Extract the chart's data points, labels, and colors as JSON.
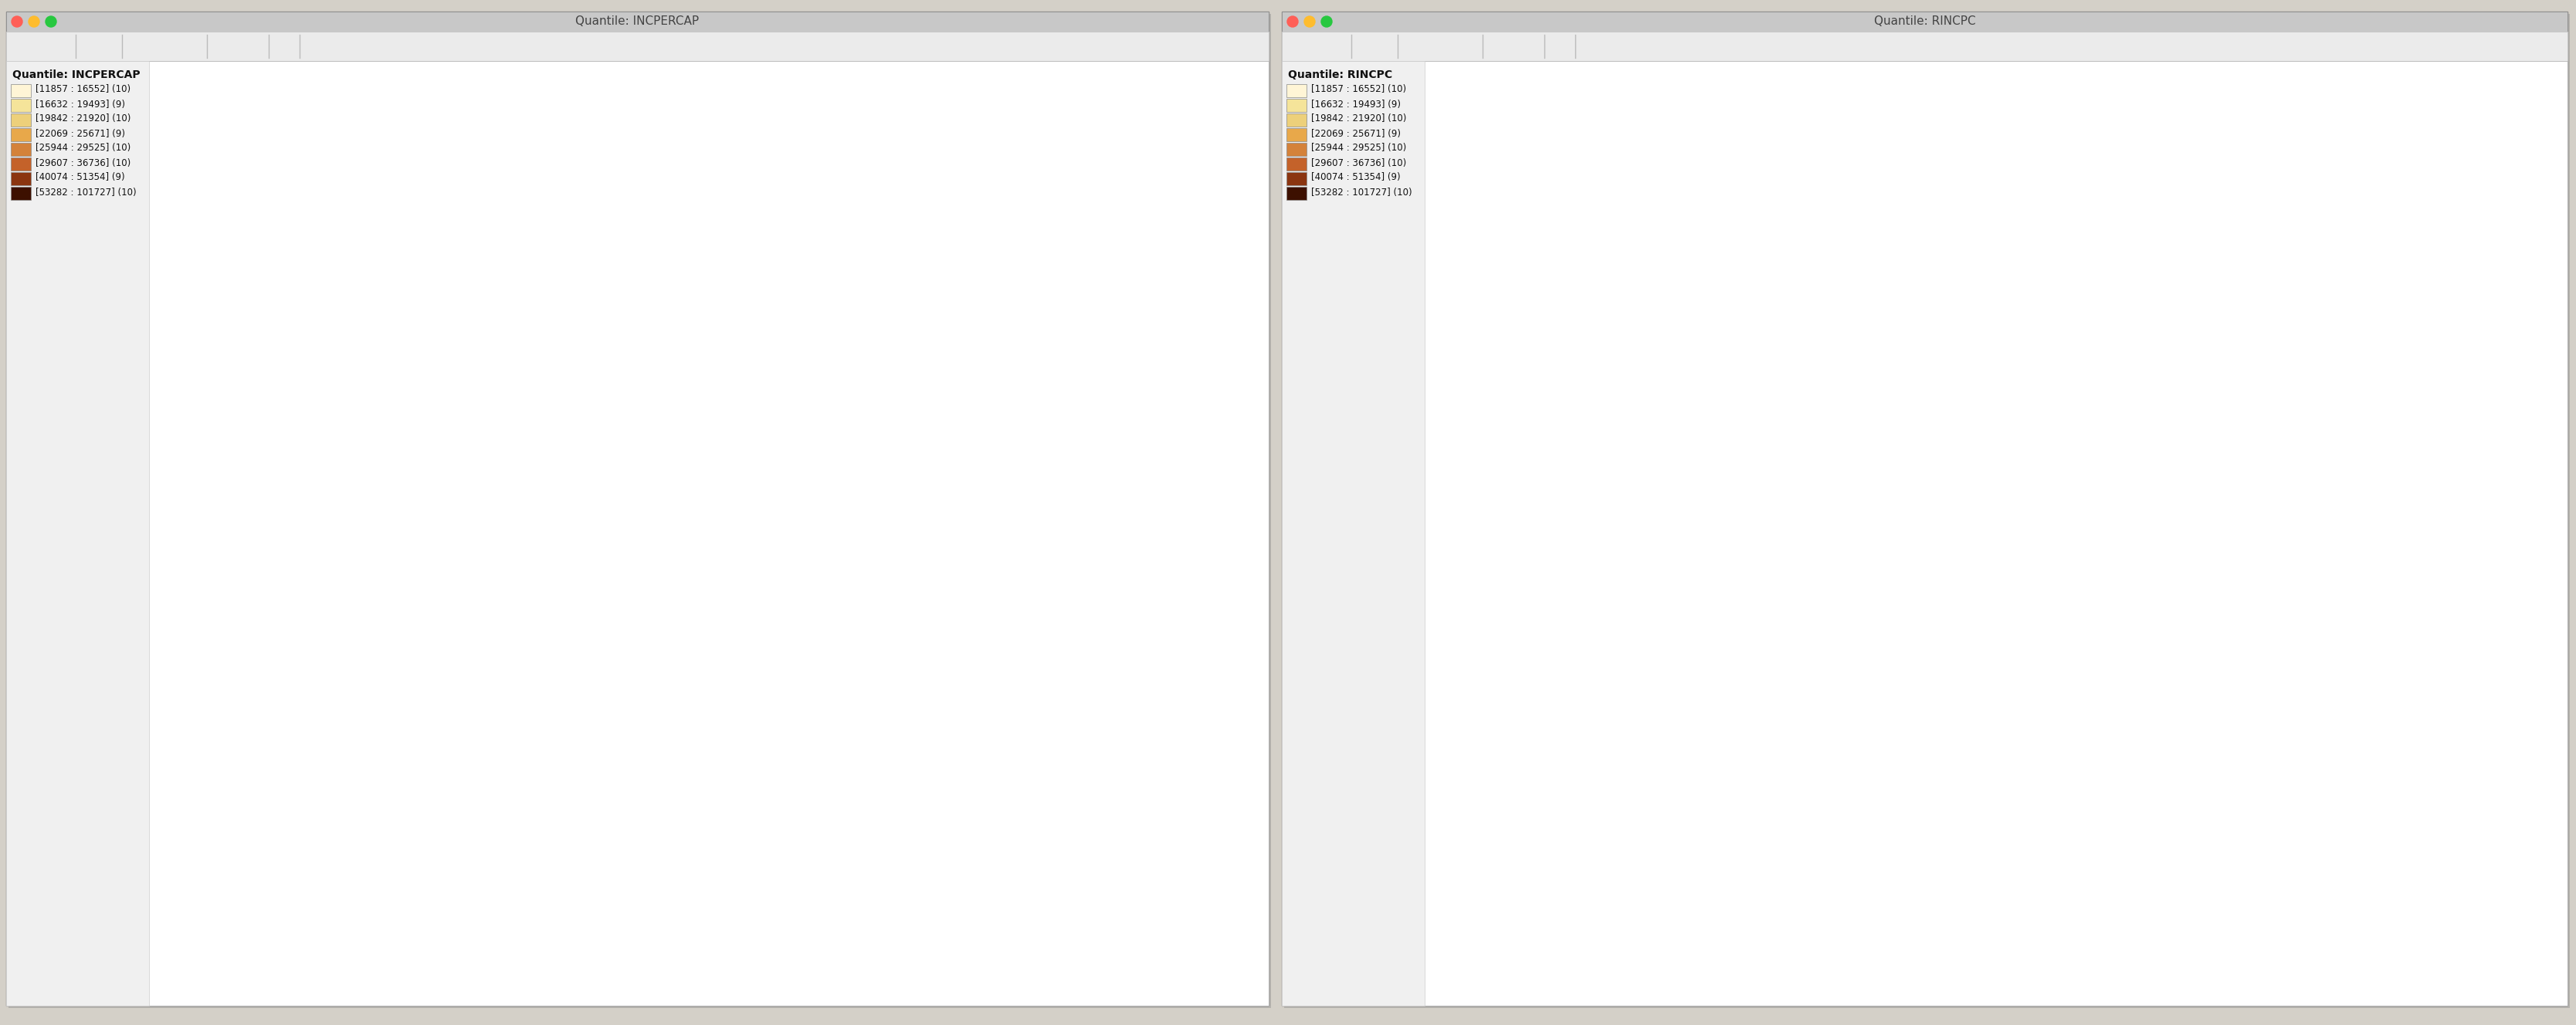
{
  "window_title_left": "Quantile: INCPERCAP",
  "window_title_right": "Quantile: RINCPC",
  "legend_title_left": "Quantile: INCPERCAP",
  "legend_title_right": "Quantile: RINCPC",
  "legend_entries": [
    "[11857 : 16552] (10)",
    "[16632 : 19493] (9)",
    "[19842 : 21920] (10)",
    "[22069 : 25671] (9)",
    "[25944 : 29525] (10)",
    "[29607 : 36736] (10)",
    "[40074 : 51354] (9)",
    "[53282 : 101727] (10)"
  ],
  "quantile_colors": [
    "#FFF5D6",
    "#F5E49A",
    "#EDD07A",
    "#E8A84A",
    "#D4823A",
    "#C4622A",
    "#8B3510",
    "#3D1000"
  ],
  "bg_color": "#D4D0C8",
  "map_bg": "#FFFFFF",
  "outline_color": "#B8A070",
  "title_bar_color": "#C8C8C8",
  "toolbar_color": "#EAEAEA",
  "content_bg": "#F2F2F2"
}
